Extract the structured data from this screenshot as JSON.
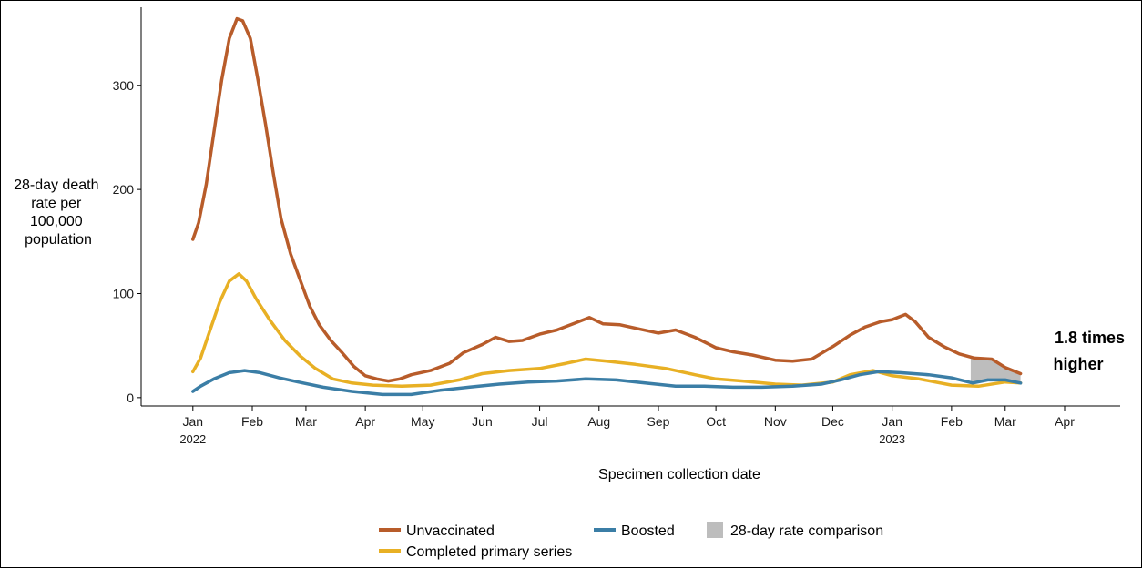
{
  "chart_data": {
    "type": "line",
    "xlabel": "Specimen collection date",
    "ylabel_lines": [
      "28-day death",
      "rate per",
      "100,000",
      "population"
    ],
    "ylim": [
      -8,
      375
    ],
    "yticks": [
      0,
      100,
      200,
      300
    ],
    "xlim": [
      "2021-12-05",
      "2023-04-30"
    ],
    "xticks": [
      {
        "date": "2022-01-01",
        "label": "Jan",
        "year": "2022"
      },
      {
        "date": "2022-02-01",
        "label": "Feb"
      },
      {
        "date": "2022-03-01",
        "label": "Mar"
      },
      {
        "date": "2022-04-01",
        "label": "Apr"
      },
      {
        "date": "2022-05-01",
        "label": "May"
      },
      {
        "date": "2022-06-01",
        "label": "Jun"
      },
      {
        "date": "2022-07-01",
        "label": "Jul"
      },
      {
        "date": "2022-08-01",
        "label": "Aug"
      },
      {
        "date": "2022-09-01",
        "label": "Sep"
      },
      {
        "date": "2022-10-01",
        "label": "Oct"
      },
      {
        "date": "2022-11-01",
        "label": "Nov"
      },
      {
        "date": "2022-12-01",
        "label": "Dec"
      },
      {
        "date": "2023-01-01",
        "label": "Jan",
        "year": "2023"
      },
      {
        "date": "2023-02-01",
        "label": "Feb"
      },
      {
        "date": "2023-03-01",
        "label": "Mar"
      },
      {
        "date": "2023-04-01",
        "label": "Apr"
      }
    ],
    "grid": false,
    "legend_position": "bottom",
    "annotation_lines": [
      "1.8 times",
      "higher"
    ],
    "shaded_region": {
      "label": "28-day rate comparison",
      "x_start": "2023-02-11",
      "x_end": "2023-03-09",
      "color": "#bdbdbd"
    },
    "series": [
      {
        "name": "Unvaccinated",
        "color": "#b85c2a",
        "points": [
          [
            "2022-01-01",
            152
          ],
          [
            "2022-01-04",
            168
          ],
          [
            "2022-01-08",
            205
          ],
          [
            "2022-01-12",
            255
          ],
          [
            "2022-01-16",
            305
          ],
          [
            "2022-01-20",
            345
          ],
          [
            "2022-01-24",
            364
          ],
          [
            "2022-01-27",
            362
          ],
          [
            "2022-01-31",
            345
          ],
          [
            "2022-02-04",
            305
          ],
          [
            "2022-02-08",
            262
          ],
          [
            "2022-02-12",
            215
          ],
          [
            "2022-02-16",
            172
          ],
          [
            "2022-02-21",
            138
          ],
          [
            "2022-02-26",
            113
          ],
          [
            "2022-03-03",
            88
          ],
          [
            "2022-03-08",
            70
          ],
          [
            "2022-03-14",
            55
          ],
          [
            "2022-03-20",
            43
          ],
          [
            "2022-03-26",
            30
          ],
          [
            "2022-04-01",
            21
          ],
          [
            "2022-04-07",
            18
          ],
          [
            "2022-04-13",
            16
          ],
          [
            "2022-04-19",
            18
          ],
          [
            "2022-04-25",
            22
          ],
          [
            "2022-05-05",
            26
          ],
          [
            "2022-05-15",
            33
          ],
          [
            "2022-05-22",
            43
          ],
          [
            "2022-06-01",
            51
          ],
          [
            "2022-06-08",
            58
          ],
          [
            "2022-06-15",
            54
          ],
          [
            "2022-06-22",
            55
          ],
          [
            "2022-07-01",
            61
          ],
          [
            "2022-07-10",
            65
          ],
          [
            "2022-07-20",
            72
          ],
          [
            "2022-07-27",
            77
          ],
          [
            "2022-08-03",
            71
          ],
          [
            "2022-08-12",
            70
          ],
          [
            "2022-08-22",
            66
          ],
          [
            "2022-09-01",
            62
          ],
          [
            "2022-09-10",
            65
          ],
          [
            "2022-09-20",
            58
          ],
          [
            "2022-10-01",
            48
          ],
          [
            "2022-10-10",
            44
          ],
          [
            "2022-10-20",
            41
          ],
          [
            "2022-11-01",
            36
          ],
          [
            "2022-11-10",
            35
          ],
          [
            "2022-11-20",
            37
          ],
          [
            "2022-12-01",
            49
          ],
          [
            "2022-12-10",
            60
          ],
          [
            "2022-12-18",
            68
          ],
          [
            "2022-12-26",
            73
          ],
          [
            "2023-01-01",
            75
          ],
          [
            "2023-01-08",
            80
          ],
          [
            "2023-01-13",
            73
          ],
          [
            "2023-01-20",
            58
          ],
          [
            "2023-01-28",
            49
          ],
          [
            "2023-02-05",
            42
          ],
          [
            "2023-02-13",
            38
          ],
          [
            "2023-02-22",
            37
          ],
          [
            "2023-03-01",
            29
          ],
          [
            "2023-03-09",
            23
          ]
        ]
      },
      {
        "name": "Completed primary series",
        "color": "#e8b024",
        "points": [
          [
            "2022-01-01",
            25
          ],
          [
            "2022-01-05",
            38
          ],
          [
            "2022-01-10",
            65
          ],
          [
            "2022-01-15",
            92
          ],
          [
            "2022-01-20",
            112
          ],
          [
            "2022-01-25",
            119
          ],
          [
            "2022-01-29",
            112
          ],
          [
            "2022-02-03",
            95
          ],
          [
            "2022-02-10",
            75
          ],
          [
            "2022-02-18",
            55
          ],
          [
            "2022-02-26",
            40
          ],
          [
            "2022-03-06",
            28
          ],
          [
            "2022-03-15",
            18
          ],
          [
            "2022-03-25",
            14
          ],
          [
            "2022-04-05",
            12
          ],
          [
            "2022-04-20",
            11
          ],
          [
            "2022-05-05",
            12
          ],
          [
            "2022-05-20",
            17
          ],
          [
            "2022-06-01",
            23
          ],
          [
            "2022-06-15",
            26
          ],
          [
            "2022-07-01",
            28
          ],
          [
            "2022-07-15",
            33
          ],
          [
            "2022-07-25",
            37
          ],
          [
            "2022-08-05",
            35
          ],
          [
            "2022-08-20",
            32
          ],
          [
            "2022-09-05",
            28
          ],
          [
            "2022-09-20",
            22
          ],
          [
            "2022-10-01",
            18
          ],
          [
            "2022-10-15",
            16
          ],
          [
            "2022-11-01",
            13
          ],
          [
            "2022-11-15",
            12
          ],
          [
            "2022-12-01",
            15
          ],
          [
            "2022-12-10",
            22
          ],
          [
            "2022-12-22",
            26
          ],
          [
            "2023-01-01",
            21
          ],
          [
            "2023-01-15",
            18
          ],
          [
            "2023-02-01",
            12
          ],
          [
            "2023-02-15",
            11
          ],
          [
            "2023-03-01",
            15
          ],
          [
            "2023-03-09",
            14
          ]
        ]
      },
      {
        "name": "Boosted",
        "color": "#3b7ea6",
        "points": [
          [
            "2022-01-01",
            6
          ],
          [
            "2022-01-05",
            11
          ],
          [
            "2022-01-12",
            18
          ],
          [
            "2022-01-20",
            24
          ],
          [
            "2022-01-28",
            26
          ],
          [
            "2022-02-05",
            24
          ],
          [
            "2022-02-15",
            19
          ],
          [
            "2022-02-25",
            15
          ],
          [
            "2022-03-10",
            10
          ],
          [
            "2022-03-25",
            6
          ],
          [
            "2022-04-10",
            3
          ],
          [
            "2022-04-25",
            3
          ],
          [
            "2022-05-10",
            7
          ],
          [
            "2022-05-25",
            10
          ],
          [
            "2022-06-10",
            13
          ],
          [
            "2022-06-25",
            15
          ],
          [
            "2022-07-10",
            16
          ],
          [
            "2022-07-25",
            18
          ],
          [
            "2022-08-10",
            17
          ],
          [
            "2022-08-25",
            14
          ],
          [
            "2022-09-10",
            11
          ],
          [
            "2022-09-25",
            11
          ],
          [
            "2022-10-10",
            10
          ],
          [
            "2022-10-25",
            10
          ],
          [
            "2022-11-10",
            11
          ],
          [
            "2022-11-25",
            13
          ],
          [
            "2022-12-05",
            17
          ],
          [
            "2022-12-15",
            22
          ],
          [
            "2022-12-25",
            25
          ],
          [
            "2023-01-05",
            24
          ],
          [
            "2023-01-20",
            22
          ],
          [
            "2023-02-01",
            19
          ],
          [
            "2023-02-12",
            14
          ],
          [
            "2023-02-20",
            17
          ],
          [
            "2023-03-01",
            17
          ],
          [
            "2023-03-09",
            14
          ]
        ]
      }
    ],
    "legend": [
      {
        "label": "Unvaccinated",
        "kind": "line",
        "color": "#b85c2a"
      },
      {
        "label": "Boosted",
        "kind": "line",
        "color": "#3b7ea6"
      },
      {
        "label": "28-day rate comparison",
        "kind": "box",
        "color": "#bdbdbd"
      },
      {
        "label": "Completed primary series",
        "kind": "line",
        "color": "#e8b024"
      }
    ]
  }
}
